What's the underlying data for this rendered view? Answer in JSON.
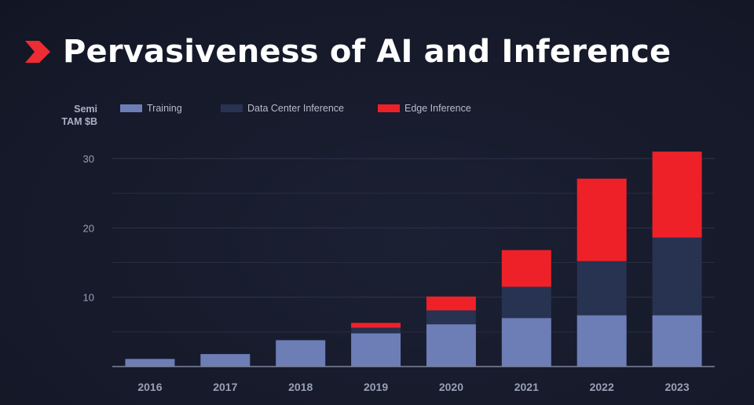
{
  "header": {
    "title": "Pervasiveness of AI and Inference",
    "logo_icon": "red-chevron-icon",
    "accent_color": "#ee2c33"
  },
  "chart_data": {
    "type": "bar",
    "stacked": true,
    "title": "Pervasiveness of AI and Inference",
    "ylabel_line1": "Semi",
    "ylabel_line2": "TAM $B",
    "xlabel": "",
    "categories": [
      "2016",
      "2017",
      "2018",
      "2019",
      "2020",
      "2021",
      "2022",
      "2023"
    ],
    "ylim": [
      0,
      30
    ],
    "yticks": [
      10,
      20,
      30
    ],
    "grid": true,
    "legend_position": "top",
    "series": [
      {
        "name": "Training",
        "color": "#6d7db6",
        "values": [
          1.1,
          1.8,
          3.8,
          4.8,
          6.1,
          7.0,
          7.4,
          7.4
        ]
      },
      {
        "name": "Data Center Inference",
        "color": "#283251",
        "values": [
          0,
          0,
          0,
          0.8,
          2.0,
          4.5,
          7.8,
          11.2
        ]
      },
      {
        "name": "Edge Inference",
        "color": "#ee2129",
        "values": [
          0,
          0,
          0,
          0.7,
          2.0,
          5.3,
          11.9,
          12.4
        ]
      }
    ]
  }
}
